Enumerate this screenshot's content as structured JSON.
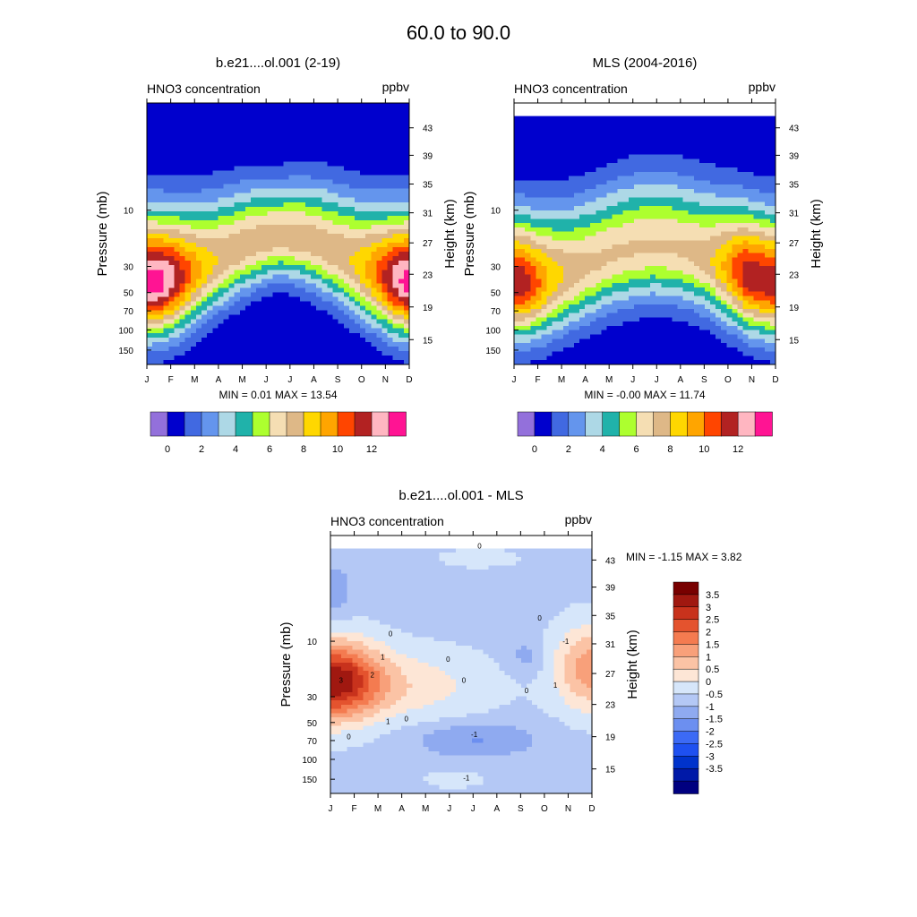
{
  "page_title": "60.0 to  90.0",
  "months": [
    "J",
    "F",
    "M",
    "A",
    "M",
    "J",
    "J",
    "A",
    "S",
    "O",
    "N",
    "D"
  ],
  "colors": {
    "abs_levels": [
      "#9370DB",
      "#0000CD",
      "#4169E1",
      "#6495ED",
      "#ADD8E6",
      "#20B2AA",
      "#ADFF2F",
      "#F5DEB3",
      "#DEB887",
      "#FFD700",
      "#FFA500",
      "#FF4500",
      "#B22222",
      "#FFB6C1",
      "#FF1493"
    ],
    "diff_levels": [
      "#000080",
      "#0019A8",
      "#0033CC",
      "#1E50F0",
      "#3C6AF5",
      "#6C8FF0",
      "#8FAAF0",
      "#B4C8F5",
      "#D6E6FA",
      "#FDE6D6",
      "#FBC3A5",
      "#F8A07A",
      "#F47B50",
      "#E4532E",
      "#C8321C",
      "#A01810",
      "#780000"
    ]
  },
  "panels": [
    {
      "title": "b.e21....ol.001 (2-19)",
      "left_label": "HNO3 concentration",
      "right_label": "ppbv",
      "ylabel": "Pressure (mb)",
      "y2label": "Height (km)",
      "stats": "MIN =   0.01  MAX =  13.54",
      "colorbar_ticks": [
        "0",
        "2",
        "4",
        "6",
        "8",
        "10",
        "12"
      ]
    },
    {
      "title": "MLS (2004-2016)",
      "left_label": "HNO3 concentration",
      "right_label": "ppbv",
      "ylabel": "Pressure (mb)",
      "y2label": "Height (km)",
      "stats": "MIN =  -0.00  MAX =  11.74",
      "colorbar_ticks": [
        "0",
        "2",
        "4",
        "6",
        "8",
        "10",
        "12"
      ]
    },
    {
      "title": "b.e21....ol.001 - MLS",
      "left_label": "HNO3 concentration",
      "right_label": "ppbv",
      "ylabel": "Pressure (mb)",
      "y2label": "Height (km)",
      "stats": "MIN =  -1.15  MAX =   3.82",
      "colorbar_ticks": [
        "3.5",
        "3",
        "2.5",
        "2",
        "1.5",
        "1",
        "0.5",
        "0",
        "-0.5",
        "-1",
        "-1.5",
        "-2",
        "-2.5",
        "-3",
        "-3.5"
      ]
    }
  ],
  "chart_data": [
    {
      "type": "heatmap",
      "title": "b.e21....ol.001 (2-19)",
      "xlabel": "",
      "ylabel": "Pressure (mb)",
      "y2label": "Height (km)",
      "units": "ppbv",
      "x": [
        "J",
        "F",
        "M",
        "A",
        "M",
        "J",
        "J",
        "A",
        "S",
        "O",
        "N",
        "D"
      ],
      "y_pressure_ticks": [
        10,
        30,
        50,
        70,
        100,
        150
      ],
      "y_height_ticks": [
        43,
        39,
        35,
        31,
        27,
        23,
        19,
        15
      ],
      "y_log_scale": true,
      "color_levels": [
        0,
        1,
        2,
        3,
        4,
        5,
        6,
        7,
        8,
        9,
        10,
        11,
        12,
        13
      ],
      "min": 0.01,
      "max": 13.54,
      "features": {
        "core_jan": 13.5,
        "core_dec": 13.5,
        "core_summer": 7.5,
        "core_height_km": 24
      }
    },
    {
      "type": "heatmap",
      "title": "MLS (2004-2016)",
      "xlabel": "",
      "ylabel": "Pressure (mb)",
      "y2label": "Height (km)",
      "units": "ppbv",
      "x": [
        "J",
        "F",
        "M",
        "A",
        "M",
        "J",
        "J",
        "A",
        "S",
        "O",
        "N",
        "D"
      ],
      "y_pressure_ticks": [
        10,
        30,
        50,
        70,
        100,
        150
      ],
      "y_height_ticks": [
        43,
        39,
        35,
        31,
        27,
        23,
        19,
        15
      ],
      "y_log_scale": true,
      "color_levels": [
        0,
        1,
        2,
        3,
        4,
        5,
        6,
        7,
        8,
        9,
        10,
        11,
        12,
        13
      ],
      "min": -0.0,
      "max": 11.74,
      "features": {
        "core_jan": 10.5,
        "core_dec": 11.7,
        "core_summer": 7.2,
        "core_height_km": 24
      }
    },
    {
      "type": "heatmap",
      "title": "b.e21....ol.001 - MLS",
      "xlabel": "",
      "ylabel": "Pressure (mb)",
      "y2label": "Height (km)",
      "units": "ppbv",
      "x": [
        "J",
        "F",
        "M",
        "A",
        "M",
        "J",
        "J",
        "A",
        "S",
        "O",
        "N",
        "D"
      ],
      "y_pressure_ticks": [
        10,
        30,
        50,
        70,
        100,
        150
      ],
      "y_height_ticks": [
        43,
        39,
        35,
        31,
        27,
        23,
        19,
        15
      ],
      "y_log_scale": true,
      "color_levels": [
        -3.5,
        -3,
        -2.5,
        -2,
        -1.5,
        -1,
        -0.5,
        0,
        0.5,
        1,
        1.5,
        2,
        2.5,
        3,
        3.5
      ],
      "min": -1.15,
      "max": 3.82,
      "contour_labels": [
        "0",
        "0",
        "0",
        "0",
        "0",
        "0",
        "0",
        "0",
        "1",
        "1",
        "1",
        "-1",
        "3",
        "2",
        "-1",
        "-1"
      ],
      "features": {
        "max_location": "Jan, ~27 km",
        "secondary_max": "Nov-Dec, ~25 km",
        "min_location": "Jun, ~18 km"
      }
    }
  ]
}
